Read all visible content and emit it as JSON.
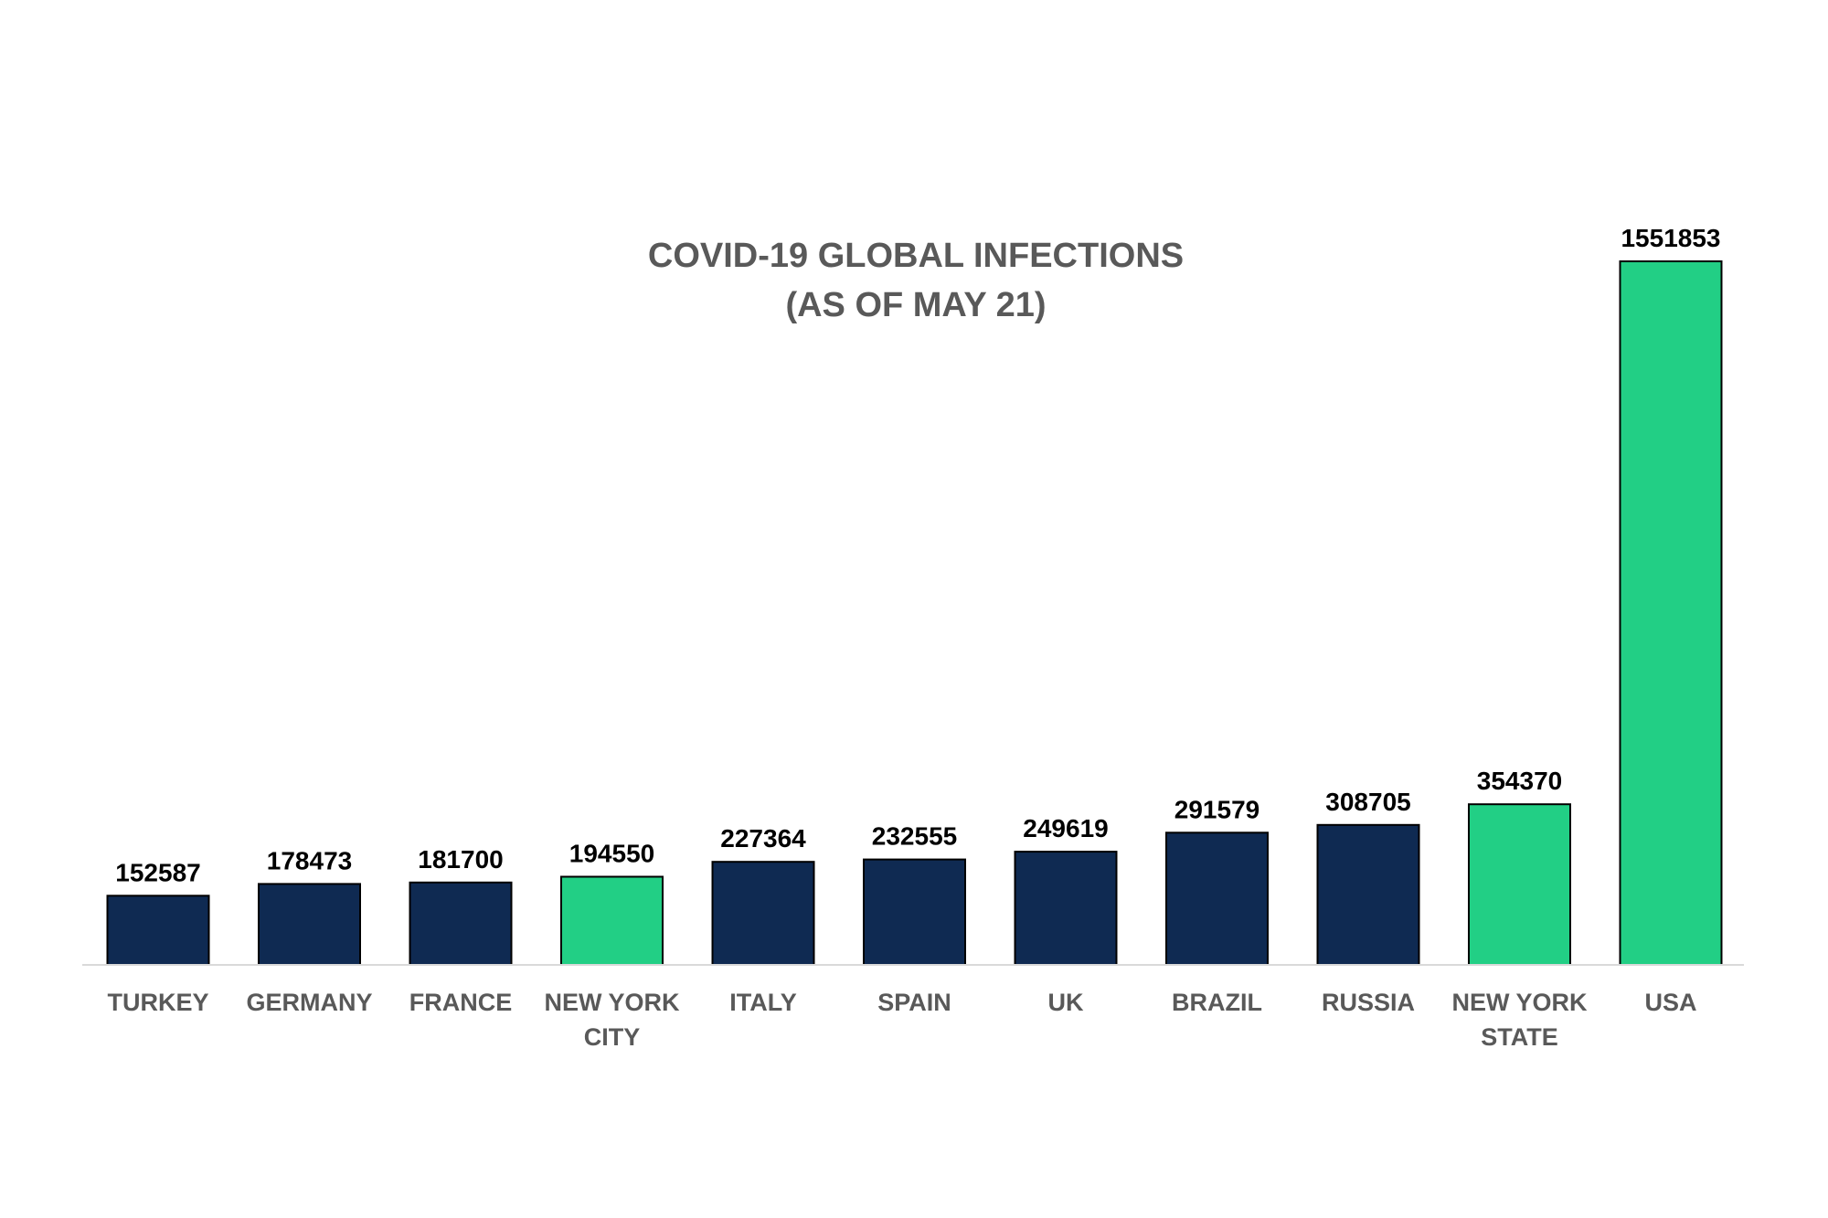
{
  "chart_data": {
    "type": "bar",
    "title": [
      "COVID-19 GLOBAL INFECTIONS",
      "(AS OF MAY 21)"
    ],
    "categories": [
      [
        "TURKEY"
      ],
      [
        "GERMANY"
      ],
      [
        "FRANCE"
      ],
      [
        "NEW YORK",
        "CITY"
      ],
      [
        "ITALY"
      ],
      [
        "SPAIN"
      ],
      [
        "UK"
      ],
      [
        "BRAZIL"
      ],
      [
        "RUSSIA"
      ],
      [
        "NEW YORK",
        "STATE"
      ],
      [
        "USA"
      ]
    ],
    "values": [
      152587,
      178473,
      181700,
      194550,
      227364,
      232555,
      249619,
      291579,
      308705,
      354370,
      1551853
    ],
    "highlight": [
      false,
      false,
      false,
      true,
      false,
      false,
      false,
      false,
      false,
      true,
      true
    ],
    "colors": {
      "default": "#0f2a52",
      "highlight": "#22cf85",
      "axis": "#d9d9d9",
      "bar_edge": "#000000"
    },
    "ylim": [
      0,
      1551853
    ],
    "grid": false,
    "legend": "none"
  }
}
